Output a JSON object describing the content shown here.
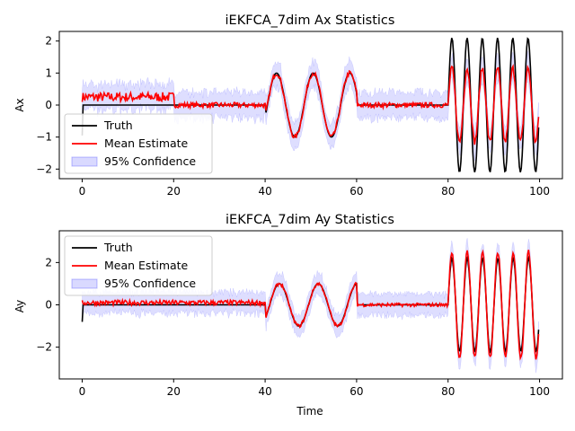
{
  "chart_data": [
    {
      "type": "line",
      "title": "iEKFCA_7dim Ax Statistics",
      "xlabel": "",
      "ylabel": "Ax",
      "xlim": [
        -5,
        105
      ],
      "ylim": [
        -2.3,
        2.3
      ],
      "xticks": [
        0,
        20,
        40,
        60,
        80,
        100
      ],
      "yticks": [
        -2,
        -1,
        0,
        1,
        2
      ],
      "legend": {
        "placement": "lower-left",
        "entries": [
          "Truth",
          "Mean Estimate",
          "95% Confidence"
        ]
      },
      "series": [
        {
          "name": "Truth",
          "color": "#000000",
          "segments": [
            {
              "x": [
                0,
                0
              ],
              "y": [
                -0.95,
                0.0
              ]
            },
            {
              "x": [
                0,
                20
              ],
              "y": [
                0.0,
                0.0
              ]
            },
            {
              "x": [
                20,
                20
              ],
              "y": [
                0.0,
                0.0
              ]
            },
            {
              "x": [
                20,
                40
              ],
              "y": [
                0.0,
                0.0
              ]
            },
            {
              "x": [
                40,
                60
              ],
              "waveform": "sine",
              "amplitude": 1.0,
              "period": 8.0,
              "phase_start": 40.5,
              "offset": 0
            },
            {
              "x": [
                60,
                80
              ],
              "y": [
                0.0,
                0.0
              ]
            },
            {
              "x": [
                80,
                100
              ],
              "waveform": "sine",
              "amplitude": 2.1,
              "period": 3.33,
              "phase_start": 80.0,
              "offset": 0
            }
          ]
        },
        {
          "name": "Mean Estimate",
          "color": "#ff0000",
          "regions": [
            {
              "x": [
                0,
                20
              ],
              "level": 0.25,
              "noise": 0.15
            },
            {
              "x": [
                20,
                40
              ],
              "level": 0.0,
              "noise": 0.08
            },
            {
              "x": [
                40,
                60
              ],
              "sine_amplitude": 1.0,
              "noise": 0.08
            },
            {
              "x": [
                60,
                80
              ],
              "level": 0.0,
              "noise": 0.08
            },
            {
              "x": [
                80,
                100
              ],
              "sine_amplitude": 1.15,
              "noise": 0.1
            }
          ]
        },
        {
          "name": "95% Confidence",
          "color": "#0000ff",
          "band_half_width": 0.4
        }
      ]
    },
    {
      "type": "line",
      "title": "iEKFCA_7dim Ay Statistics",
      "xlabel": "Time",
      "ylabel": "Ay",
      "xlim": [
        -5,
        105
      ],
      "ylim": [
        -3.5,
        3.5
      ],
      "xticks": [
        0,
        20,
        40,
        60,
        80,
        100
      ],
      "yticks": [
        -2,
        0,
        2
      ],
      "legend": {
        "placement": "upper-left",
        "entries": [
          "Truth",
          "Mean Estimate",
          "95% Confidence"
        ]
      },
      "series": [
        {
          "name": "Truth",
          "color": "#000000",
          "segments": [
            {
              "x": [
                0,
                0
              ],
              "y": [
                -0.8,
                -0.3
              ]
            },
            {
              "x": [
                0,
                40
              ],
              "y": [
                0.0,
                0.0
              ]
            },
            {
              "x": [
                40,
                60
              ],
              "waveform": "sine",
              "amplitude": 1.0,
              "period": 8.5,
              "phase_start": 41.0,
              "offset": 0
            },
            {
              "x": [
                60,
                80
              ],
              "y": [
                0.0,
                0.0
              ]
            },
            {
              "x": [
                80,
                100
              ],
              "waveform": "sine",
              "amplitude": 2.2,
              "period": 3.35,
              "phase_start": 80.0,
              "offset": 0
            }
          ]
        },
        {
          "name": "Mean Estimate",
          "color": "#ff0000",
          "regions": [
            {
              "x": [
                0,
                40
              ],
              "level": 0.1,
              "noise": 0.12
            },
            {
              "x": [
                40,
                60
              ],
              "sine_amplitude": 1.0,
              "noise": 0.08
            },
            {
              "x": [
                60,
                80
              ],
              "level": 0.0,
              "noise": 0.08
            },
            {
              "x": [
                80,
                100
              ],
              "sine_amplitude": 2.5,
              "noise": 0.1
            }
          ]
        },
        {
          "name": "95% Confidence",
          "color": "#0000ff",
          "band_half_width": 0.5
        }
      ]
    }
  ]
}
